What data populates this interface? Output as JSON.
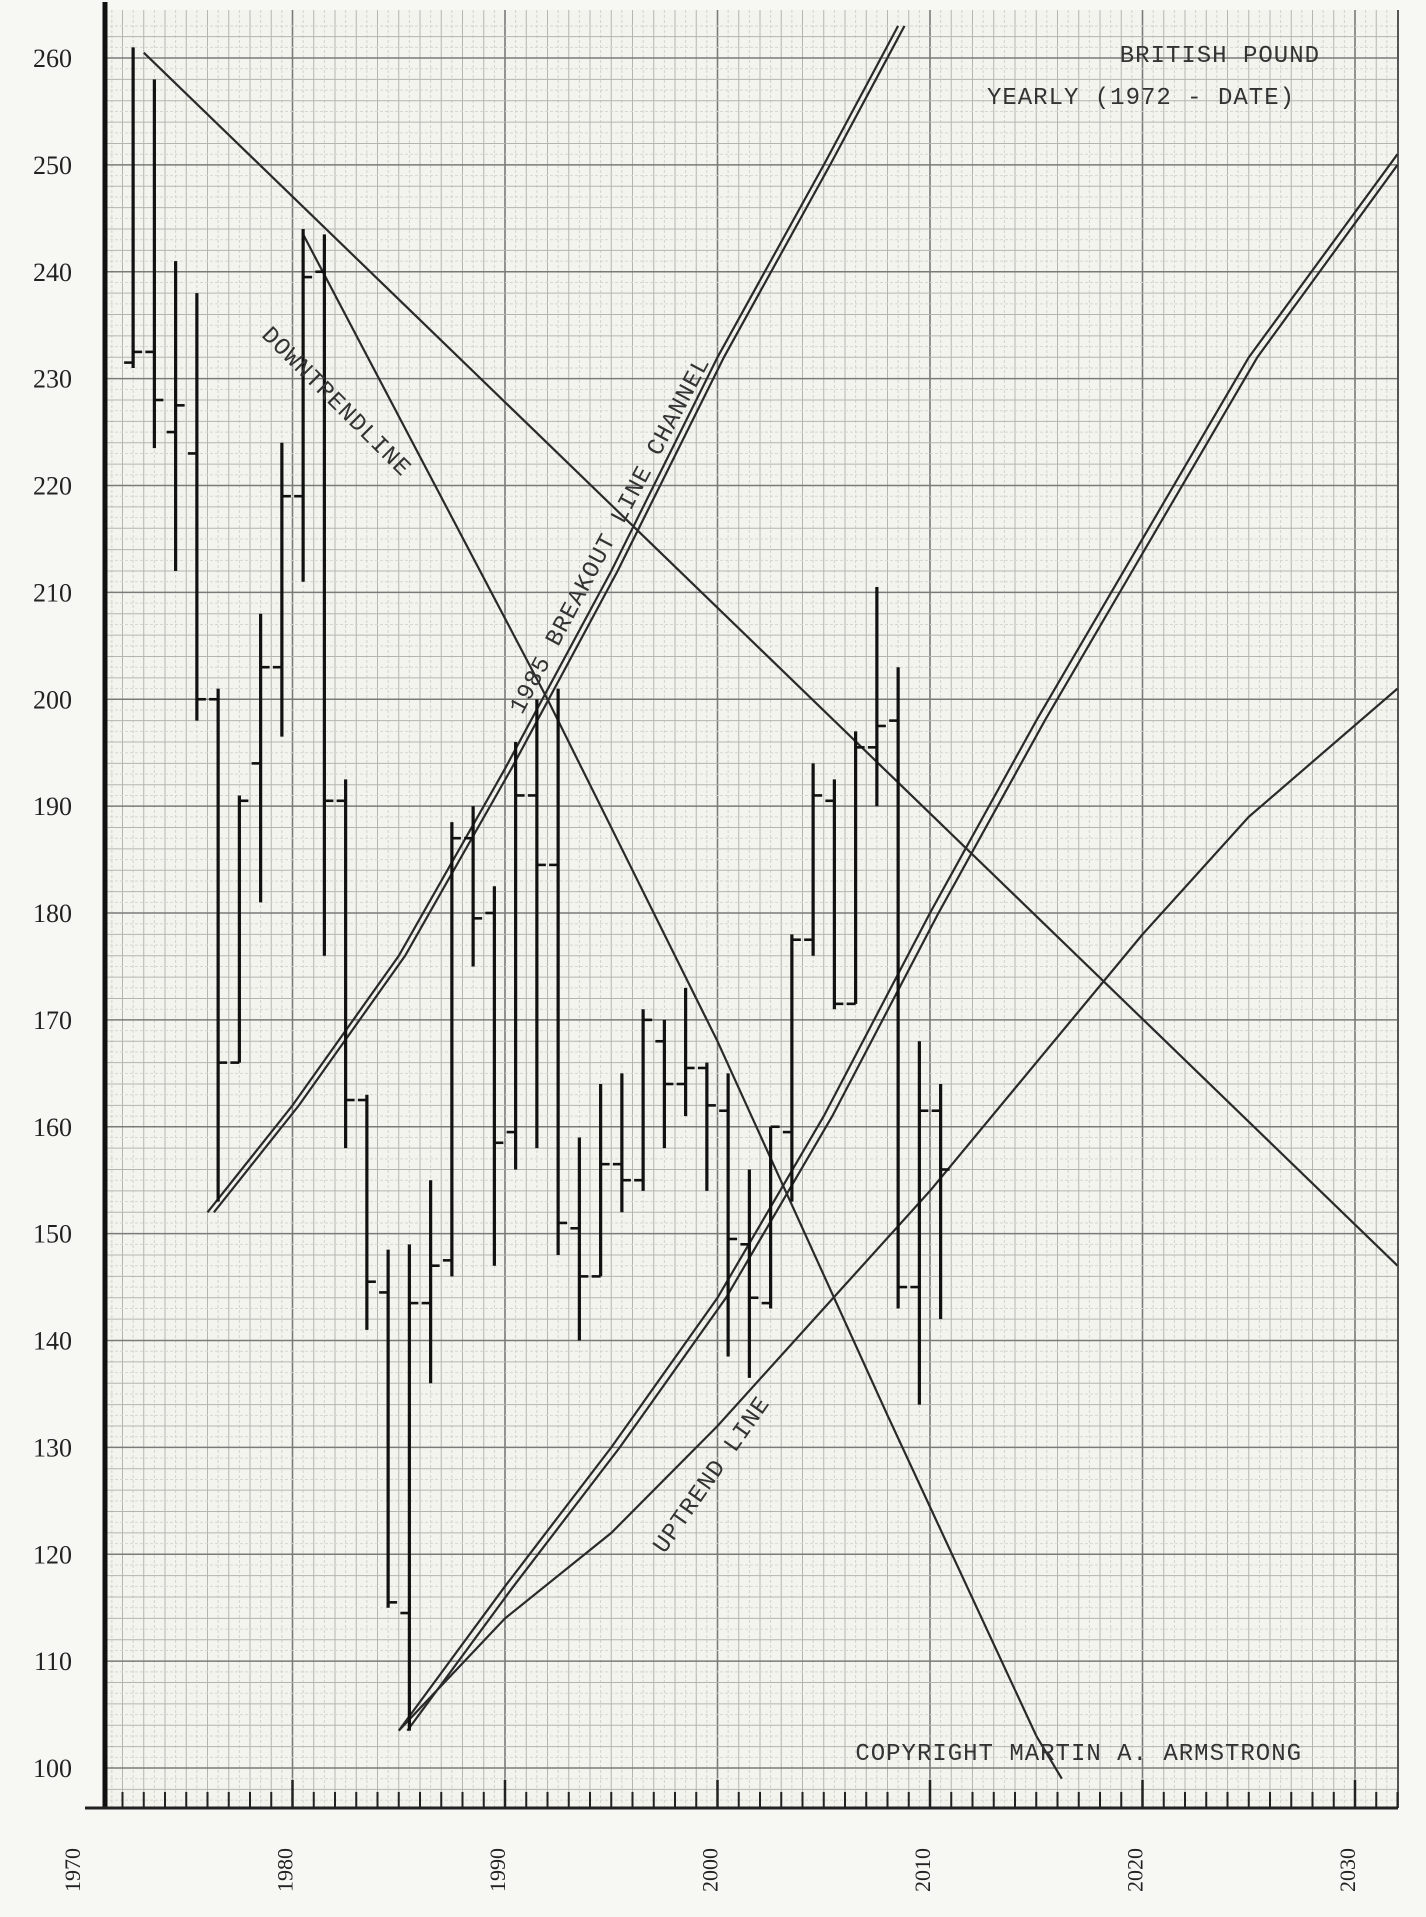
{
  "chart_data": {
    "type": "ohlc",
    "title": "BRITISH POUND",
    "subtitle": "YEARLY (1972 - DATE)",
    "copyright": "COPYRIGHT MARTIN A. ARMSTRONG",
    "ylim": [
      95,
      263
    ],
    "xlim": [
      1970,
      2032
    ],
    "yticks": [
      100,
      110,
      120,
      130,
      140,
      150,
      160,
      170,
      180,
      190,
      200,
      210,
      220,
      230,
      240,
      250,
      260
    ],
    "xticks": [
      1970,
      1980,
      1990,
      2000,
      2010,
      2020,
      2030
    ],
    "grid": true,
    "bars": [
      {
        "year": 1972,
        "open": 231.5,
        "high": 261.0,
        "low": 231.0,
        "close": 232.5
      },
      {
        "year": 1973,
        "open": 232.5,
        "high": 258.0,
        "low": 223.5,
        "close": 228.0
      },
      {
        "year": 1974,
        "open": 225.0,
        "high": 241.0,
        "low": 212.0,
        "close": 227.5
      },
      {
        "year": 1975,
        "open": 223.0,
        "high": 238.0,
        "low": 198.0,
        "close": 200.0
      },
      {
        "year": 1976,
        "open": 200.0,
        "high": 201.0,
        "low": 153.0,
        "close": 166.0
      },
      {
        "year": 1977,
        "open": 166.0,
        "high": 191.0,
        "low": 166.0,
        "close": 190.5
      },
      {
        "year": 1978,
        "open": 194.0,
        "high": 208.0,
        "low": 181.0,
        "close": 203.0
      },
      {
        "year": 1979,
        "open": 203.0,
        "high": 224.0,
        "low": 196.5,
        "close": 219.0
      },
      {
        "year": 1980,
        "open": 219.0,
        "high": 244.0,
        "low": 211.0,
        "close": 239.5
      },
      {
        "year": 1981,
        "open": 240.0,
        "high": 243.5,
        "low": 176.0,
        "close": 190.5
      },
      {
        "year": 1982,
        "open": 190.5,
        "high": 192.5,
        "low": 158.0,
        "close": 162.5
      },
      {
        "year": 1983,
        "open": 162.5,
        "high": 163.0,
        "low": 141.0,
        "close": 145.5
      },
      {
        "year": 1984,
        "open": 144.5,
        "high": 148.5,
        "low": 115.0,
        "close": 115.5
      },
      {
        "year": 1985,
        "open": 114.5,
        "high": 149.0,
        "low": 103.5,
        "close": 143.5
      },
      {
        "year": 1986,
        "open": 143.5,
        "high": 155.0,
        "low": 136.0,
        "close": 147.0
      },
      {
        "year": 1987,
        "open": 147.5,
        "high": 188.5,
        "low": 146.0,
        "close": 187.0
      },
      {
        "year": 1988,
        "open": 187.0,
        "high": 190.0,
        "low": 175.0,
        "close": 179.5
      },
      {
        "year": 1989,
        "open": 180.0,
        "high": 182.5,
        "low": 147.0,
        "close": 158.5
      },
      {
        "year": 1990,
        "open": 159.5,
        "high": 196.0,
        "low": 156.0,
        "close": 191.0
      },
      {
        "year": 1991,
        "open": 191.0,
        "high": 200.0,
        "low": 158.0,
        "close": 184.5
      },
      {
        "year": 1992,
        "open": 184.5,
        "high": 201.0,
        "low": 148.0,
        "close": 151.0
      },
      {
        "year": 1993,
        "open": 150.5,
        "high": 159.0,
        "low": 140.0,
        "close": 146.0
      },
      {
        "year": 1994,
        "open": 146.0,
        "high": 164.0,
        "low": 146.0,
        "close": 156.5
      },
      {
        "year": 1995,
        "open": 156.5,
        "high": 165.0,
        "low": 152.0,
        "close": 155.0
      },
      {
        "year": 1996,
        "open": 155.0,
        "high": 171.0,
        "low": 154.0,
        "close": 170.0
      },
      {
        "year": 1997,
        "open": 168.0,
        "high": 170.0,
        "low": 158.0,
        "close": 164.0
      },
      {
        "year": 1998,
        "open": 164.0,
        "high": 173.0,
        "low": 161.0,
        "close": 165.5
      },
      {
        "year": 1999,
        "open": 165.5,
        "high": 166.0,
        "low": 154.0,
        "close": 162.0
      },
      {
        "year": 2000,
        "open": 161.5,
        "high": 165.0,
        "low": 138.5,
        "close": 149.5
      },
      {
        "year": 2001,
        "open": 149.0,
        "high": 156.0,
        "low": 136.5,
        "close": 144.0
      },
      {
        "year": 2002,
        "open": 143.5,
        "high": 160.0,
        "low": 143.0,
        "close": 160.0
      },
      {
        "year": 2003,
        "open": 159.5,
        "high": 178.0,
        "low": 153.0,
        "close": 177.5
      },
      {
        "year": 2004,
        "open": 177.5,
        "high": 194.0,
        "low": 176.0,
        "close": 191.0
      },
      {
        "year": 2005,
        "open": 190.5,
        "high": 192.5,
        "low": 171.0,
        "close": 171.5
      },
      {
        "year": 2006,
        "open": 171.5,
        "high": 197.0,
        "low": 171.5,
        "close": 195.5
      },
      {
        "year": 2007,
        "open": 195.5,
        "high": 210.5,
        "low": 190.0,
        "close": 197.5
      },
      {
        "year": 2008,
        "open": 198.0,
        "high": 203.0,
        "low": 143.0,
        "close": 145.0
      },
      {
        "year": 2009,
        "open": 145.0,
        "high": 168.0,
        "low": 134.0,
        "close": 161.5
      },
      {
        "year": 2010,
        "open": 161.5,
        "high": 164.0,
        "low": 142.0,
        "close": 156.0
      }
    ],
    "trendlines": [
      {
        "name": "DOWNTRENDLINE",
        "points": [
          [
            1973.0,
            260.5
          ],
          [
            2032.0,
            147.0
          ]
        ]
      },
      {
        "name": "1985 BREAKOUT LINE CHANNEL",
        "points": [
          [
            1976.0,
            152.0
          ],
          [
            1980.0,
            162.0
          ],
          [
            1985.0,
            176.0
          ],
          [
            1990.0,
            193.5
          ],
          [
            1995.0,
            212.0
          ],
          [
            2000.0,
            232.0
          ],
          [
            2005.0,
            250.0
          ],
          [
            2008.5,
            263.0
          ]
        ]
      },
      {
        "name": "1985 BREAKOUT LINE CHANNEL",
        "points": [
          [
            1976.3,
            152.0
          ],
          [
            1980.3,
            162.0
          ],
          [
            1985.3,
            176.0
          ],
          [
            1990.3,
            193.5
          ],
          [
            1995.3,
            212.0
          ],
          [
            2000.3,
            232.0
          ],
          [
            2005.3,
            250.0
          ],
          [
            2008.8,
            263.0
          ]
        ]
      },
      {
        "name": "",
        "points": [
          [
            1980.5,
            243.5
          ],
          [
            1992.0,
            200.0
          ],
          [
            2000.0,
            168.0
          ],
          [
            2008.0,
            133.0
          ],
          [
            2015.0,
            103.0
          ]
        ]
      },
      {
        "name": "",
        "points": [
          [
            1985.0,
            103.5
          ],
          [
            1990.0,
            117.0
          ],
          [
            1995.0,
            130.0
          ],
          [
            2000.0,
            144.0
          ],
          [
            2005.0,
            161.0
          ],
          [
            2010.0,
            180.0
          ],
          [
            2015.0,
            198.0
          ],
          [
            2020.0,
            215.0
          ],
          [
            2025.0,
            232.0
          ],
          [
            2032.0,
            251.0
          ]
        ]
      },
      {
        "name": "",
        "points": [
          [
            1985.4,
            103.5
          ],
          [
            1990.4,
            117.0
          ],
          [
            1995.4,
            130.0
          ],
          [
            2000.4,
            144.0
          ],
          [
            2005.4,
            161.0
          ],
          [
            2010.4,
            180.0
          ],
          [
            2015.4,
            198.0
          ],
          [
            2020.4,
            215.0
          ],
          [
            2025.4,
            232.0
          ],
          [
            2032.0,
            250.0
          ]
        ]
      },
      {
        "name": "UPTREND LINE",
        "points": [
          [
            1985.0,
            103.5
          ],
          [
            1990.0,
            114.0
          ],
          [
            1995.0,
            122.0
          ],
          [
            2000.0,
            132.0
          ],
          [
            2005.0,
            143.0
          ],
          [
            2010.0,
            154.0
          ],
          [
            2015.0,
            166.0
          ],
          [
            2020.0,
            178.0
          ],
          [
            2025.0,
            189.0
          ],
          [
            2032.0,
            201.0
          ]
        ]
      },
      {
        "name": "",
        "points": [
          [
            2015.0,
            103.0
          ],
          [
            2016.2,
            99.0
          ]
        ]
      }
    ],
    "annotations": [
      {
        "text": "DOWNTRENDLINE",
        "x": 1978.5,
        "y": 234.0,
        "angle": 45
      },
      {
        "text": "1985 BREAKOUT LINE CHANNEL",
        "x": 1990.8,
        "y": 198.5,
        "angle": -62
      },
      {
        "text": "UPTREND LINE",
        "x": 1997.5,
        "y": 120.0,
        "angle": -55
      }
    ]
  }
}
